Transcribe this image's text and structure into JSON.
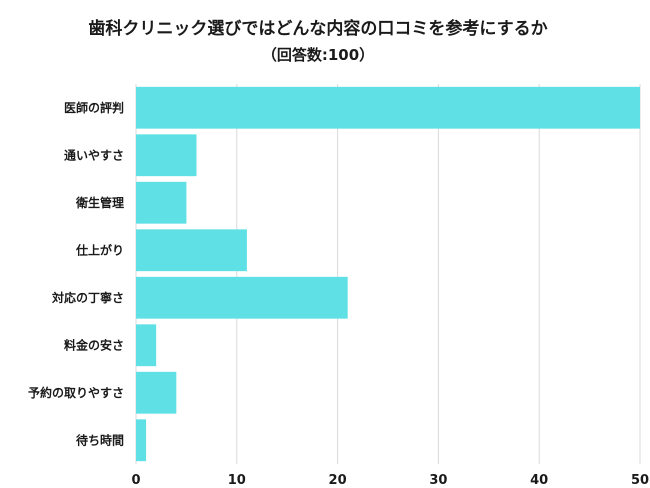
{
  "chart_data": {
    "type": "bar",
    "orientation": "horizontal",
    "title": "歯科クリニック選びではどんな内容の口コミを参考にするか",
    "subtitle": "（回答数:100）",
    "categories": [
      "医師の評判",
      "通いやすさ",
      "衛生管理",
      "仕上がり",
      "対応の丁寧さ",
      "料金の安さ",
      "予約の取りやすさ",
      "待ち時間"
    ],
    "values": [
      50,
      6,
      5,
      11,
      21,
      2,
      4,
      1
    ],
    "xlim": [
      0,
      50
    ],
    "xticks": [
      0,
      10,
      20,
      30,
      40,
      50
    ],
    "grid": true,
    "bar_color": "#5ee0e5",
    "grid_color": "#d9d9d9"
  }
}
